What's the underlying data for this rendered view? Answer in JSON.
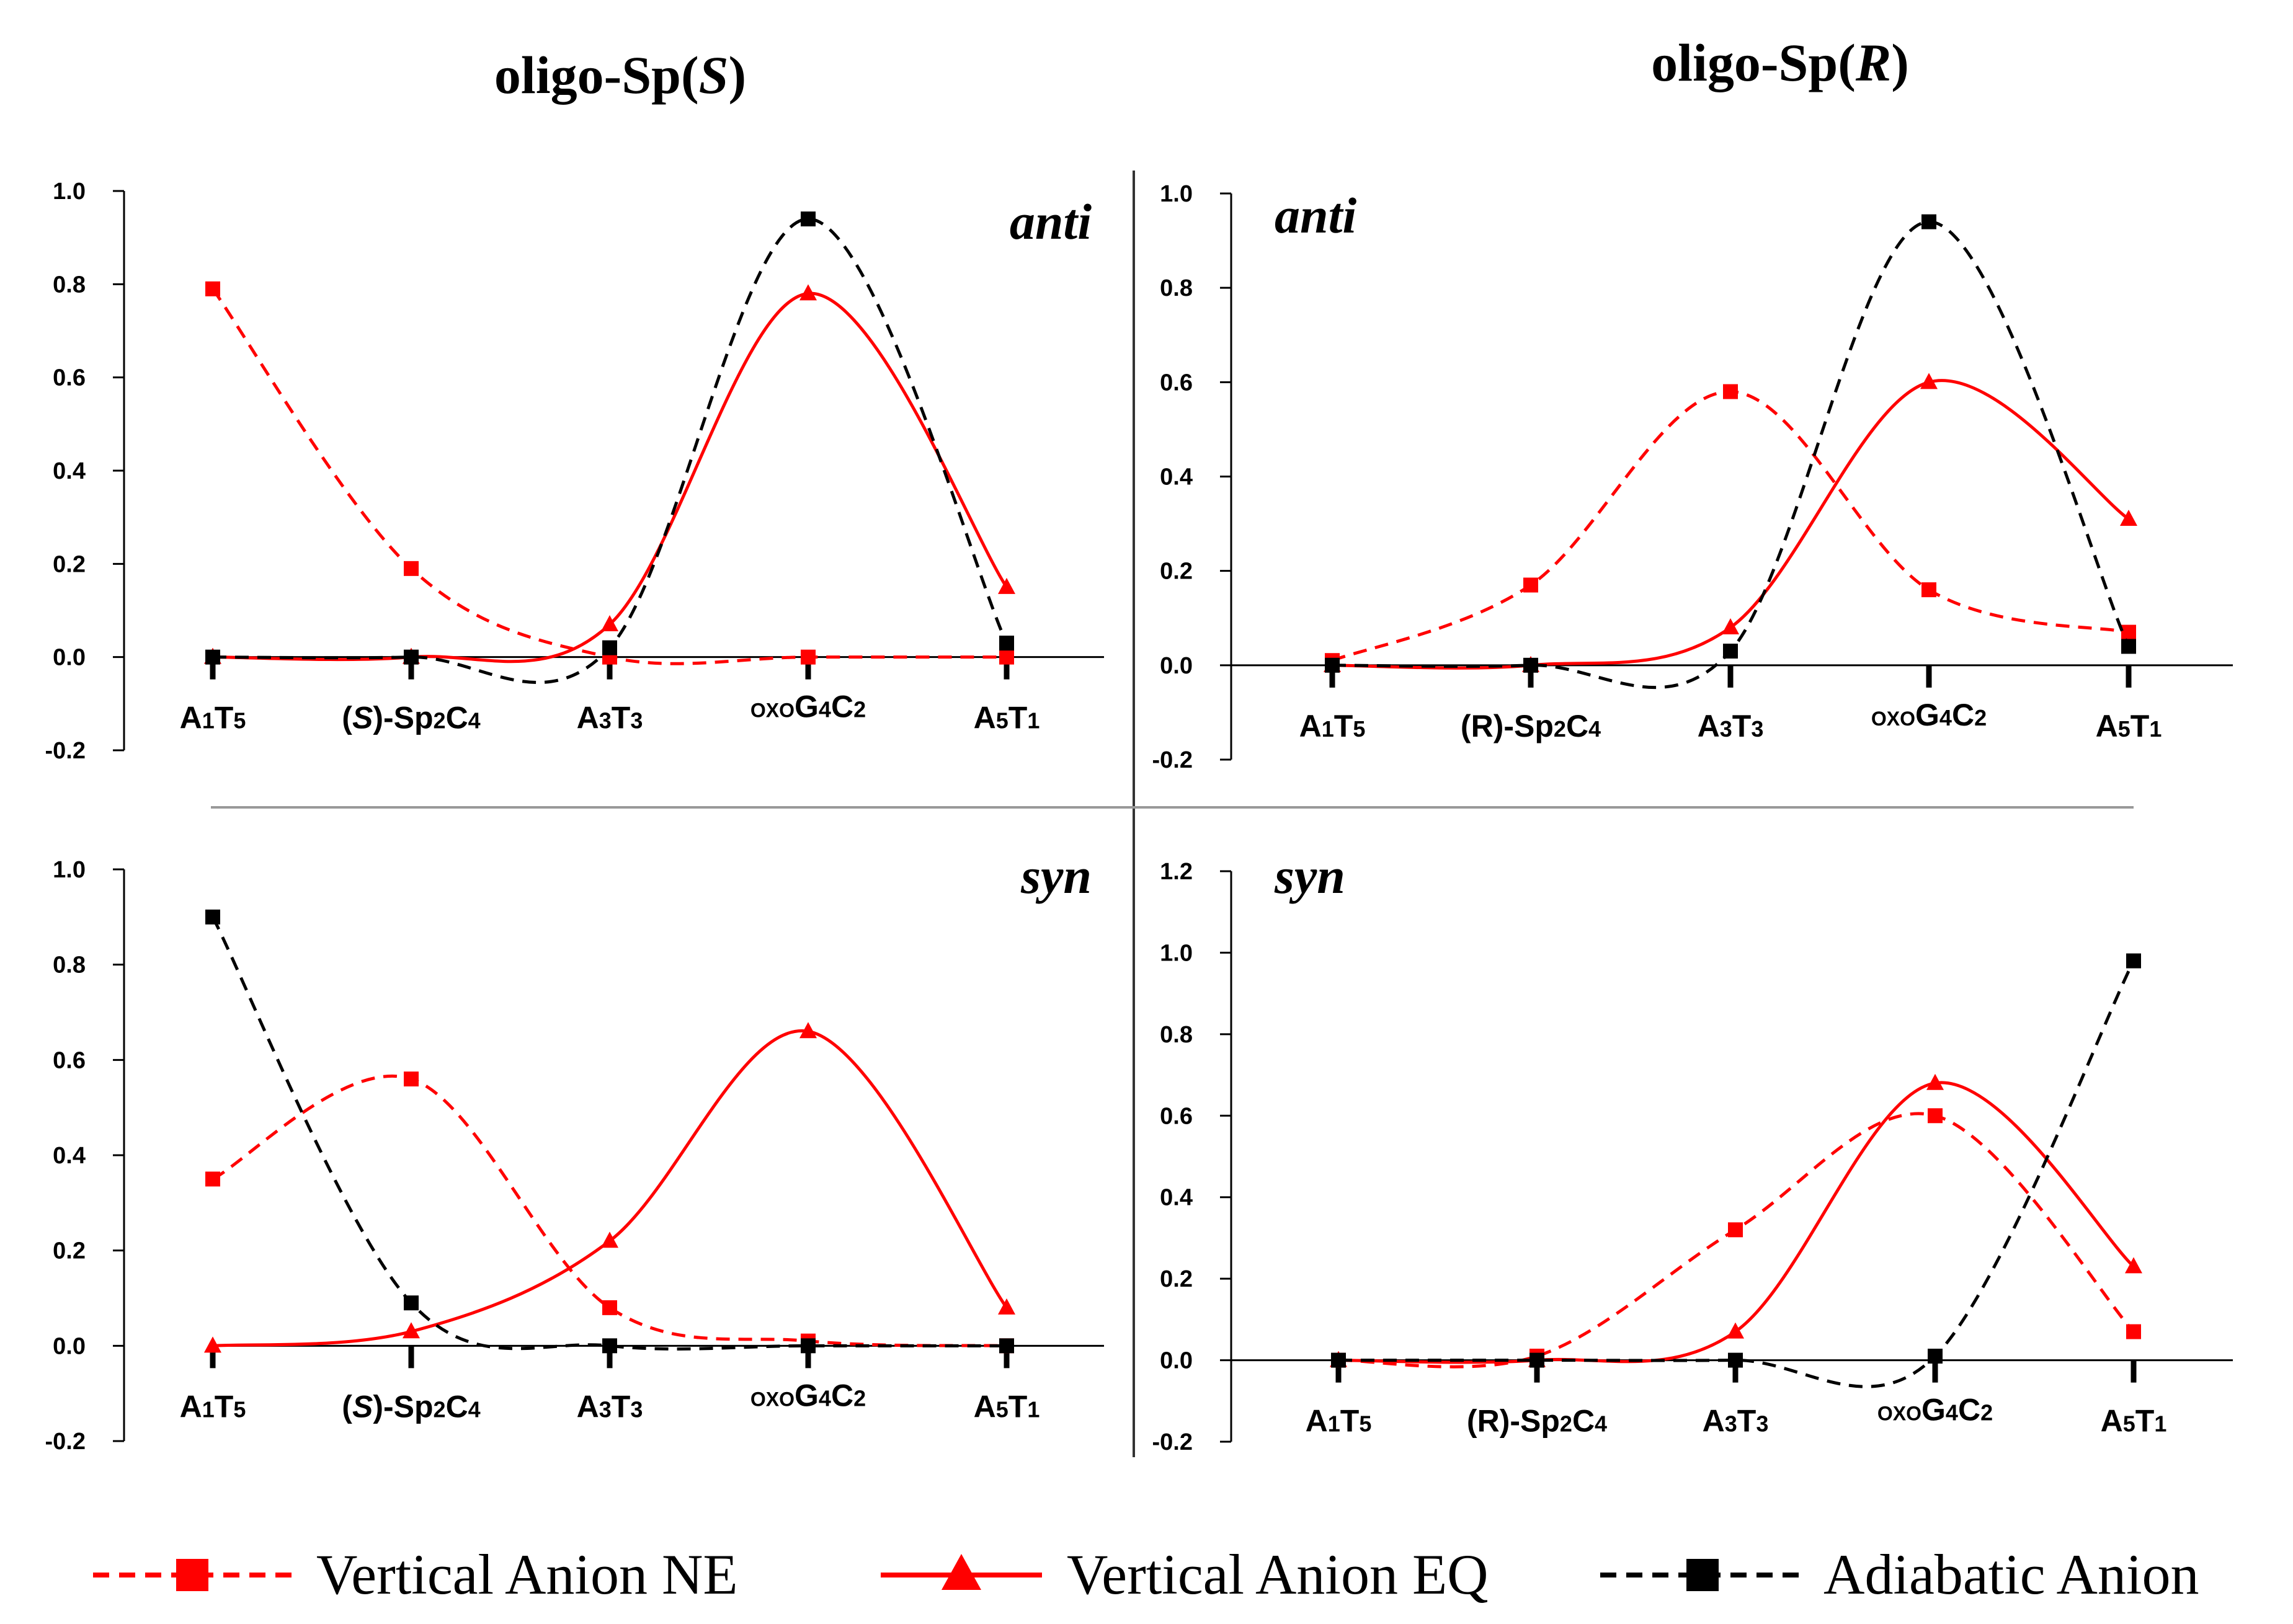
{
  "figure": {
    "col_titles": [
      {
        "pre": "oligo-Sp(",
        "it": "S",
        "post": ")"
      },
      {
        "pre": "oligo-Sp(",
        "it": "R",
        "post": ")"
      }
    ]
  },
  "colors": {
    "ne": "#ff0000",
    "eq": "#ff0000",
    "adia": "#000000",
    "axis": "#000000",
    "divider": "#999999"
  },
  "legend": [
    {
      "name": "Vertical Anion NE",
      "marker": "square",
      "line": "dashed",
      "color": "#ff0000"
    },
    {
      "name": "Vertical Anion EQ",
      "marker": "triangle",
      "line": "solid",
      "color": "#ff0000"
    },
    {
      "name": "Adiabatic Anion",
      "marker": "square",
      "line": "dashed",
      "color": "#000000"
    }
  ],
  "chart_data": [
    {
      "type": "line",
      "panel_label": "anti",
      "column": "oligo-Sp(S)",
      "categories": [
        "A1T5",
        "(S)-Sp2C4",
        "A3T3",
        "oxoG4C2",
        "A5T1"
      ],
      "ylim": [
        -0.2,
        1.0
      ],
      "yticks": [
        "-0.2",
        "0.0",
        "0.2",
        "0.4",
        "0.6",
        "0.8",
        "1.0"
      ],
      "series": [
        {
          "name": "Vertical Anion NE",
          "values": [
            0.79,
            0.19,
            0.0,
            0.0,
            0.0
          ]
        },
        {
          "name": "Vertical Anion EQ",
          "values": [
            0.0,
            0.0,
            0.07,
            0.78,
            0.15
          ]
        },
        {
          "name": "Adiabatic Anion",
          "values": [
            0.0,
            0.0,
            0.02,
            0.94,
            0.03
          ]
        }
      ]
    },
    {
      "type": "line",
      "panel_label": "anti",
      "column": "oligo-Sp(R)",
      "categories": [
        "A1T5",
        "(R)-Sp2C4",
        "A3T3",
        "oxoG4C2",
        "A5T1"
      ],
      "ylim": [
        -0.2,
        1.0
      ],
      "yticks": [
        "-0.2",
        "0.0",
        "0.2",
        "0.4",
        "0.6",
        "0.8",
        "1.0"
      ],
      "series": [
        {
          "name": "Vertical Anion NE",
          "values": [
            0.01,
            0.17,
            0.58,
            0.16,
            0.07
          ]
        },
        {
          "name": "Vertical Anion EQ",
          "values": [
            0.0,
            0.0,
            0.08,
            0.6,
            0.31
          ]
        },
        {
          "name": "Adiabatic Anion",
          "values": [
            0.0,
            0.0,
            0.03,
            0.94,
            0.04
          ]
        }
      ]
    },
    {
      "type": "line",
      "panel_label": "syn",
      "column": "oligo-Sp(S)",
      "categories": [
        "A1T5",
        "(S)-Sp2C4",
        "A3T3",
        "oxoG4C2",
        "A5T1"
      ],
      "ylim": [
        -0.2,
        1.0
      ],
      "yticks": [
        "-0.2",
        "0.0",
        "0.2",
        "0.4",
        "0.6",
        "0.8",
        "1.0"
      ],
      "series": [
        {
          "name": "Vertical Anion NE",
          "values": [
            0.35,
            0.56,
            0.08,
            0.01,
            0.0
          ]
        },
        {
          "name": "Vertical Anion EQ",
          "values": [
            0.0,
            0.03,
            0.22,
            0.66,
            0.08
          ]
        },
        {
          "name": "Adiabatic Anion",
          "values": [
            0.9,
            0.09,
            0.0,
            0.0,
            0.0
          ]
        }
      ]
    },
    {
      "type": "line",
      "panel_label": "syn",
      "column": "oligo-Sp(R)",
      "categories": [
        "A1T5",
        "(R)-Sp2C4",
        "A3T3",
        "oxoG4C2",
        "A5T1"
      ],
      "ylim": [
        -0.2,
        1.2
      ],
      "yticks": [
        "-0.2",
        "0.0",
        "0.2",
        "0.4",
        "0.6",
        "0.8",
        "1.0",
        "1.2"
      ],
      "series": [
        {
          "name": "Vertical Anion NE",
          "values": [
            0.0,
            0.01,
            0.32,
            0.6,
            0.07
          ]
        },
        {
          "name": "Vertical Anion EQ",
          "values": [
            0.0,
            0.0,
            0.07,
            0.68,
            0.23
          ]
        },
        {
          "name": "Adiabatic Anion",
          "values": [
            0.0,
            0.0,
            0.0,
            0.01,
            0.98
          ]
        }
      ]
    }
  ]
}
